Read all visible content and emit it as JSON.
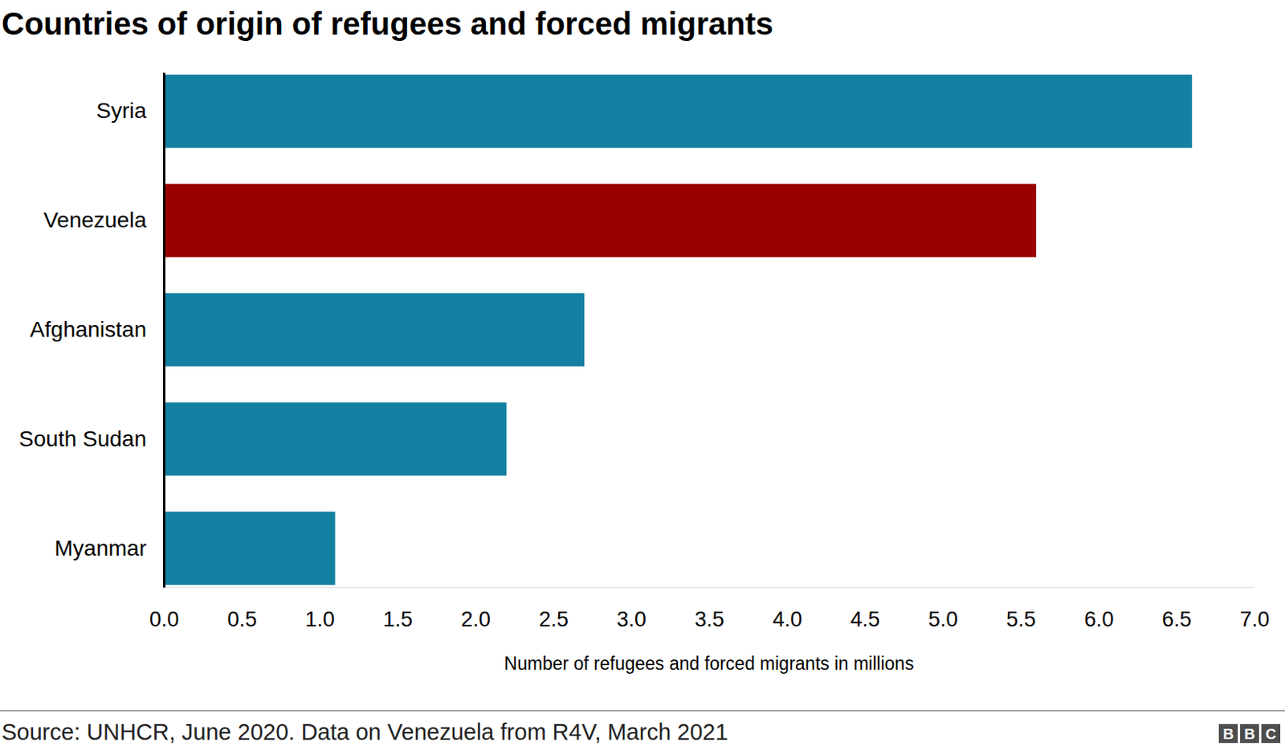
{
  "chart_data": {
    "type": "bar",
    "orientation": "horizontal",
    "title": "Countries of origin of refugees and forced migrants",
    "x_label": "Number of refugees and forced migrants in millions",
    "source": "Source: UNHCR, June 2020. Data on Venezuela from R4V, March 2021",
    "branding": "BBC",
    "categories": [
      "Syria",
      "Venezuela",
      "Afghanistan",
      "South Sudan",
      "Myanmar"
    ],
    "values": [
      6.6,
      5.6,
      2.7,
      2.2,
      1.1
    ],
    "colors": [
      "#1380a1",
      "#990000",
      "#1380a1",
      "#1380a1",
      "#1380a1"
    ],
    "xlim": [
      0,
      7
    ],
    "xticks": [
      {
        "value": 0,
        "label": "0.0"
      },
      0.5,
      {
        "value": 1,
        "label": "1.0"
      },
      1.5,
      {
        "value": 2,
        "label": "2.0"
      },
      2.5,
      {
        "value": 3,
        "label": "3.0"
      },
      3.5,
      {
        "value": 4,
        "label": "4.0"
      },
      4.5,
      {
        "value": 5,
        "label": "5.0"
      },
      5.5,
      {
        "value": 6,
        "label": "6.0"
      },
      6.5,
      {
        "value": 7,
        "label": "7.0"
      }
    ],
    "grid": false
  }
}
